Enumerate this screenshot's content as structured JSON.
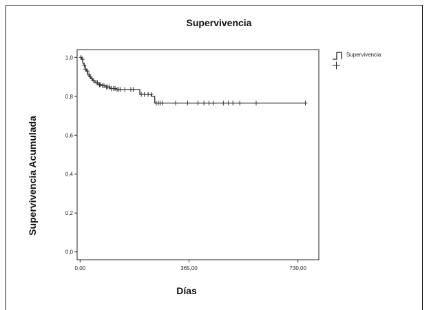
{
  "chart_data": {
    "type": "line",
    "title": "Supervivencia",
    "xlabel": "Días",
    "ylabel": "Supervivencia Acumulada",
    "xlim": [
      -10,
      800
    ],
    "ylim": [
      -0.04,
      1.04
    ],
    "x_ticks": [
      0,
      365,
      730
    ],
    "x_tick_labels": [
      "0,00",
      "365,00",
      "730,00"
    ],
    "y_ticks": [
      0,
      0.2,
      0.4,
      0.6,
      0.8,
      1.0
    ],
    "y_tick_labels": [
      "0,0",
      "0,2",
      "0,4",
      "0,6",
      "0,8",
      "1,0"
    ],
    "grid": false,
    "legend_position": "top-right",
    "series": [
      {
        "name": "Supervivencia",
        "color": "#333333",
        "step_x": [
          0,
          5,
          9,
          13,
          17,
          21,
          26,
          31,
          36,
          42,
          50,
          60,
          70,
          85,
          100,
          120,
          140,
          160,
          195,
          200,
          240,
          250,
          755
        ],
        "step_y": [
          1.0,
          0.99,
          0.97,
          0.96,
          0.94,
          0.93,
          0.91,
          0.9,
          0.89,
          0.88,
          0.87,
          0.86,
          0.855,
          0.848,
          0.84,
          0.835,
          0.835,
          0.835,
          0.835,
          0.81,
          0.8,
          0.765,
          0.765
        ],
        "censored_x": [
          3,
          8,
          14,
          18,
          24,
          30,
          34,
          40,
          45,
          54,
          58,
          65,
          68,
          75,
          80,
          88,
          93,
          98,
          105,
          112,
          117,
          124,
          130,
          136,
          150,
          170,
          178,
          205,
          215,
          228,
          238,
          255,
          262,
          268,
          275,
          320,
          360,
          395,
          415,
          432,
          447,
          480,
          497,
          512,
          535,
          590,
          755
        ]
      }
    ]
  }
}
